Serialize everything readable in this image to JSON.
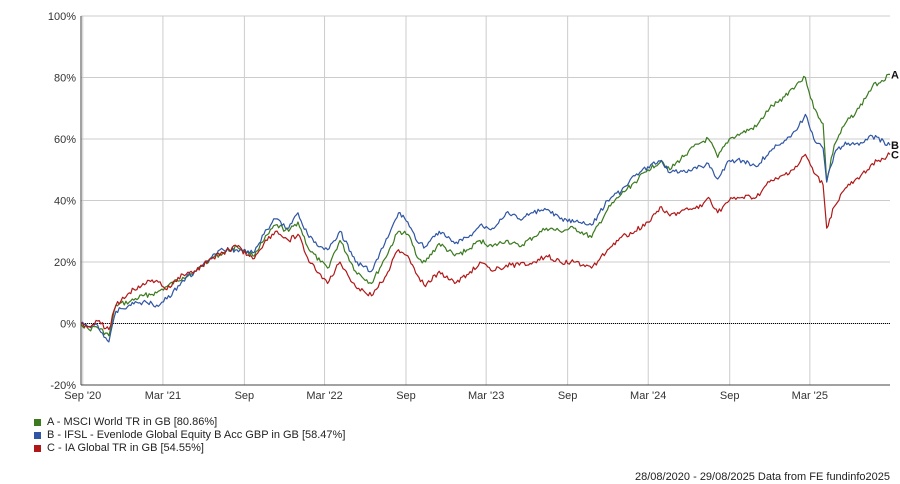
{
  "chart_data": {
    "type": "line",
    "title": "",
    "xlabel": "",
    "ylabel": "",
    "x_range": [
      "2020-08-28",
      "2025-08-29"
    ],
    "ylim": [
      -20,
      100
    ],
    "y_ticks": [
      -20,
      0,
      20,
      40,
      60,
      80,
      100
    ],
    "y_tick_labels": [
      "-20%",
      "0%",
      "20%",
      "40%",
      "60%",
      "80%",
      "100%"
    ],
    "x_ticks": [
      {
        "date": "2020-09-01",
        "label": "Sep '20"
      },
      {
        "date": "2021-03-01",
        "label": "Mar '21"
      },
      {
        "date": "2021-09-01",
        "label": "Sep"
      },
      {
        "date": "2022-03-01",
        "label": "Mar '22"
      },
      {
        "date": "2022-09-01",
        "label": "Sep"
      },
      {
        "date": "2023-03-01",
        "label": "Mar '23"
      },
      {
        "date": "2023-09-01",
        "label": "Sep"
      },
      {
        "date": "2024-03-01",
        "label": "Mar '24"
      },
      {
        "date": "2024-09-01",
        "label": "Sep"
      },
      {
        "date": "2025-03-01",
        "label": "Mar '25"
      }
    ],
    "grid": true,
    "legend_position": "bottom-left",
    "series": [
      {
        "name": "A - MSCI World TR in GB [80.86%]",
        "end_label": "A",
        "color": "#3b7a1e",
        "points": [
          [
            "2020-08-28",
            0
          ],
          [
            "2020-09-15",
            -2
          ],
          [
            "2020-10-01",
            -1
          ],
          [
            "2020-10-30",
            -4
          ],
          [
            "2020-11-15",
            6
          ],
          [
            "2020-12-15",
            7
          ],
          [
            "2021-01-15",
            9
          ],
          [
            "2021-02-15",
            10
          ],
          [
            "2021-03-10",
            12
          ],
          [
            "2021-04-15",
            15
          ],
          [
            "2021-05-15",
            17
          ],
          [
            "2021-06-15",
            21
          ],
          [
            "2021-07-15",
            23
          ],
          [
            "2021-08-15",
            25
          ],
          [
            "2021-09-20",
            22
          ],
          [
            "2021-10-15",
            27
          ],
          [
            "2021-11-10",
            32
          ],
          [
            "2021-12-10",
            30
          ],
          [
            "2021-12-31",
            33
          ],
          [
            "2022-01-25",
            24
          ],
          [
            "2022-02-20",
            20
          ],
          [
            "2022-03-08",
            18
          ],
          [
            "2022-04-05",
            27
          ],
          [
            "2022-05-10",
            17
          ],
          [
            "2022-06-15",
            13
          ],
          [
            "2022-07-15",
            21
          ],
          [
            "2022-08-15",
            30
          ],
          [
            "2022-09-05",
            29
          ],
          [
            "2022-09-30",
            21
          ],
          [
            "2022-10-15",
            20
          ],
          [
            "2022-11-15",
            26
          ],
          [
            "2022-12-20",
            22
          ],
          [
            "2023-01-20",
            24
          ],
          [
            "2023-02-15",
            27
          ],
          [
            "2023-03-15",
            25
          ],
          [
            "2023-04-15",
            27
          ],
          [
            "2023-05-15",
            25
          ],
          [
            "2023-06-15",
            28
          ],
          [
            "2023-07-15",
            31
          ],
          [
            "2023-08-15",
            30
          ],
          [
            "2023-09-15",
            31
          ],
          [
            "2023-10-25",
            28
          ],
          [
            "2023-11-30",
            37
          ],
          [
            "2023-12-31",
            42
          ],
          [
            "2024-01-31",
            46
          ],
          [
            "2024-02-29",
            50
          ],
          [
            "2024-03-31",
            53
          ],
          [
            "2024-04-19",
            50
          ],
          [
            "2024-05-31",
            56
          ],
          [
            "2024-06-30",
            59
          ],
          [
            "2024-07-15",
            60
          ],
          [
            "2024-08-05",
            54
          ],
          [
            "2024-08-31",
            60
          ],
          [
            "2024-09-30",
            62
          ],
          [
            "2024-10-31",
            64
          ],
          [
            "2024-11-30",
            70
          ],
          [
            "2024-12-20",
            72
          ],
          [
            "2025-01-31",
            78
          ],
          [
            "2025-02-19",
            80
          ],
          [
            "2025-03-10",
            70
          ],
          [
            "2025-03-31",
            65
          ],
          [
            "2025-04-08",
            46
          ],
          [
            "2025-04-25",
            58
          ],
          [
            "2025-05-20",
            65
          ],
          [
            "2025-06-20",
            70
          ],
          [
            "2025-07-20",
            77
          ],
          [
            "2025-08-29",
            81
          ]
        ]
      },
      {
        "name": "B - IFSL - Evenlode Global Equity B Acc GBP in GB [58.47%]",
        "end_label": "B",
        "color": "#2f55a4",
        "points": [
          [
            "2020-08-28",
            0
          ],
          [
            "2020-09-15",
            -1
          ],
          [
            "2020-10-01",
            0
          ],
          [
            "2020-10-30",
            -6
          ],
          [
            "2020-11-15",
            4
          ],
          [
            "2020-12-15",
            6
          ],
          [
            "2021-01-15",
            7
          ],
          [
            "2021-02-15",
            6
          ],
          [
            "2021-03-10",
            8
          ],
          [
            "2021-04-15",
            14
          ],
          [
            "2021-05-15",
            17
          ],
          [
            "2021-06-15",
            21
          ],
          [
            "2021-07-15",
            24
          ],
          [
            "2021-08-15",
            24
          ],
          [
            "2021-09-20",
            23
          ],
          [
            "2021-10-15",
            29
          ],
          [
            "2021-11-10",
            34
          ],
          [
            "2021-12-10",
            31
          ],
          [
            "2021-12-31",
            36
          ],
          [
            "2022-01-25",
            28
          ],
          [
            "2022-02-20",
            25
          ],
          [
            "2022-03-08",
            24
          ],
          [
            "2022-04-05",
            30
          ],
          [
            "2022-05-10",
            20
          ],
          [
            "2022-06-15",
            17
          ],
          [
            "2022-07-15",
            26
          ],
          [
            "2022-08-15",
            36
          ],
          [
            "2022-09-05",
            33
          ],
          [
            "2022-09-30",
            26
          ],
          [
            "2022-10-15",
            25
          ],
          [
            "2022-11-15",
            30
          ],
          [
            "2022-12-20",
            26
          ],
          [
            "2023-01-20",
            28
          ],
          [
            "2023-02-15",
            32
          ],
          [
            "2023-03-15",
            31
          ],
          [
            "2023-04-15",
            36
          ],
          [
            "2023-05-15",
            34
          ],
          [
            "2023-06-15",
            36
          ],
          [
            "2023-07-15",
            37
          ],
          [
            "2023-08-15",
            34
          ],
          [
            "2023-09-15",
            33
          ],
          [
            "2023-10-25",
            32
          ],
          [
            "2023-11-30",
            40
          ],
          [
            "2023-12-31",
            43
          ],
          [
            "2024-01-31",
            48
          ],
          [
            "2024-02-29",
            51
          ],
          [
            "2024-03-31",
            53
          ],
          [
            "2024-04-19",
            49
          ],
          [
            "2024-05-31",
            50
          ],
          [
            "2024-06-30",
            51
          ],
          [
            "2024-07-15",
            52
          ],
          [
            "2024-08-05",
            47
          ],
          [
            "2024-08-31",
            53
          ],
          [
            "2024-09-30",
            53
          ],
          [
            "2024-10-31",
            51
          ],
          [
            "2024-11-30",
            56
          ],
          [
            "2024-12-20",
            58
          ],
          [
            "2025-01-31",
            63
          ],
          [
            "2025-02-19",
            68
          ],
          [
            "2025-03-10",
            60
          ],
          [
            "2025-03-31",
            57
          ],
          [
            "2025-04-08",
            46
          ],
          [
            "2025-04-25",
            55
          ],
          [
            "2025-05-20",
            59
          ],
          [
            "2025-06-20",
            58
          ],
          [
            "2025-07-20",
            61
          ],
          [
            "2025-08-29",
            58
          ]
        ]
      },
      {
        "name": "C - IA Global TR in GB [54.55%]",
        "end_label": "C",
        "color": "#b01818",
        "points": [
          [
            "2020-08-28",
            0
          ],
          [
            "2020-09-15",
            -1
          ],
          [
            "2020-10-01",
            1
          ],
          [
            "2020-10-30",
            -2
          ],
          [
            "2020-11-15",
            6
          ],
          [
            "2020-12-15",
            10
          ],
          [
            "2021-01-15",
            13
          ],
          [
            "2021-02-15",
            14
          ],
          [
            "2021-03-10",
            11
          ],
          [
            "2021-04-15",
            16
          ],
          [
            "2021-05-15",
            17
          ],
          [
            "2021-06-15",
            21
          ],
          [
            "2021-07-15",
            23
          ],
          [
            "2021-08-15",
            25
          ],
          [
            "2021-09-20",
            21
          ],
          [
            "2021-10-15",
            26
          ],
          [
            "2021-11-10",
            30
          ],
          [
            "2021-12-10",
            27
          ],
          [
            "2021-12-31",
            29
          ],
          [
            "2022-01-25",
            20
          ],
          [
            "2022-02-20",
            16
          ],
          [
            "2022-03-08",
            13
          ],
          [
            "2022-04-05",
            20
          ],
          [
            "2022-05-10",
            12
          ],
          [
            "2022-06-15",
            9
          ],
          [
            "2022-07-15",
            15
          ],
          [
            "2022-08-15",
            24
          ],
          [
            "2022-09-05",
            22
          ],
          [
            "2022-09-30",
            15
          ],
          [
            "2022-10-15",
            12
          ],
          [
            "2022-11-15",
            17
          ],
          [
            "2022-12-20",
            13
          ],
          [
            "2023-01-20",
            16
          ],
          [
            "2023-02-15",
            20
          ],
          [
            "2023-03-15",
            17
          ],
          [
            "2023-04-15",
            19
          ],
          [
            "2023-05-15",
            19
          ],
          [
            "2023-06-15",
            20
          ],
          [
            "2023-07-15",
            22
          ],
          [
            "2023-08-15",
            20
          ],
          [
            "2023-09-15",
            20
          ],
          [
            "2023-10-25",
            18
          ],
          [
            "2023-11-30",
            24
          ],
          [
            "2023-12-31",
            28
          ],
          [
            "2024-01-31",
            30
          ],
          [
            "2024-02-29",
            33
          ],
          [
            "2024-03-31",
            38
          ],
          [
            "2024-04-19",
            35
          ],
          [
            "2024-05-31",
            37
          ],
          [
            "2024-06-30",
            38
          ],
          [
            "2024-07-15",
            41
          ],
          [
            "2024-08-05",
            36
          ],
          [
            "2024-08-31",
            40
          ],
          [
            "2024-09-30",
            41
          ],
          [
            "2024-10-31",
            41
          ],
          [
            "2024-11-30",
            46
          ],
          [
            "2024-12-20",
            47
          ],
          [
            "2025-01-31",
            51
          ],
          [
            "2025-02-19",
            55
          ],
          [
            "2025-03-10",
            49
          ],
          [
            "2025-03-31",
            45
          ],
          [
            "2025-04-08",
            31
          ],
          [
            "2025-04-25",
            38
          ],
          [
            "2025-05-20",
            44
          ],
          [
            "2025-06-20",
            47
          ],
          [
            "2025-07-20",
            52
          ],
          [
            "2025-08-29",
            55
          ]
        ]
      }
    ],
    "zero_line": true
  },
  "footer_text": "28/08/2020 - 29/08/2025 Data from FE fundinfo2025",
  "colors": {
    "grid": "#cccccc",
    "axis": "#444444",
    "zero_line": "#000000"
  }
}
